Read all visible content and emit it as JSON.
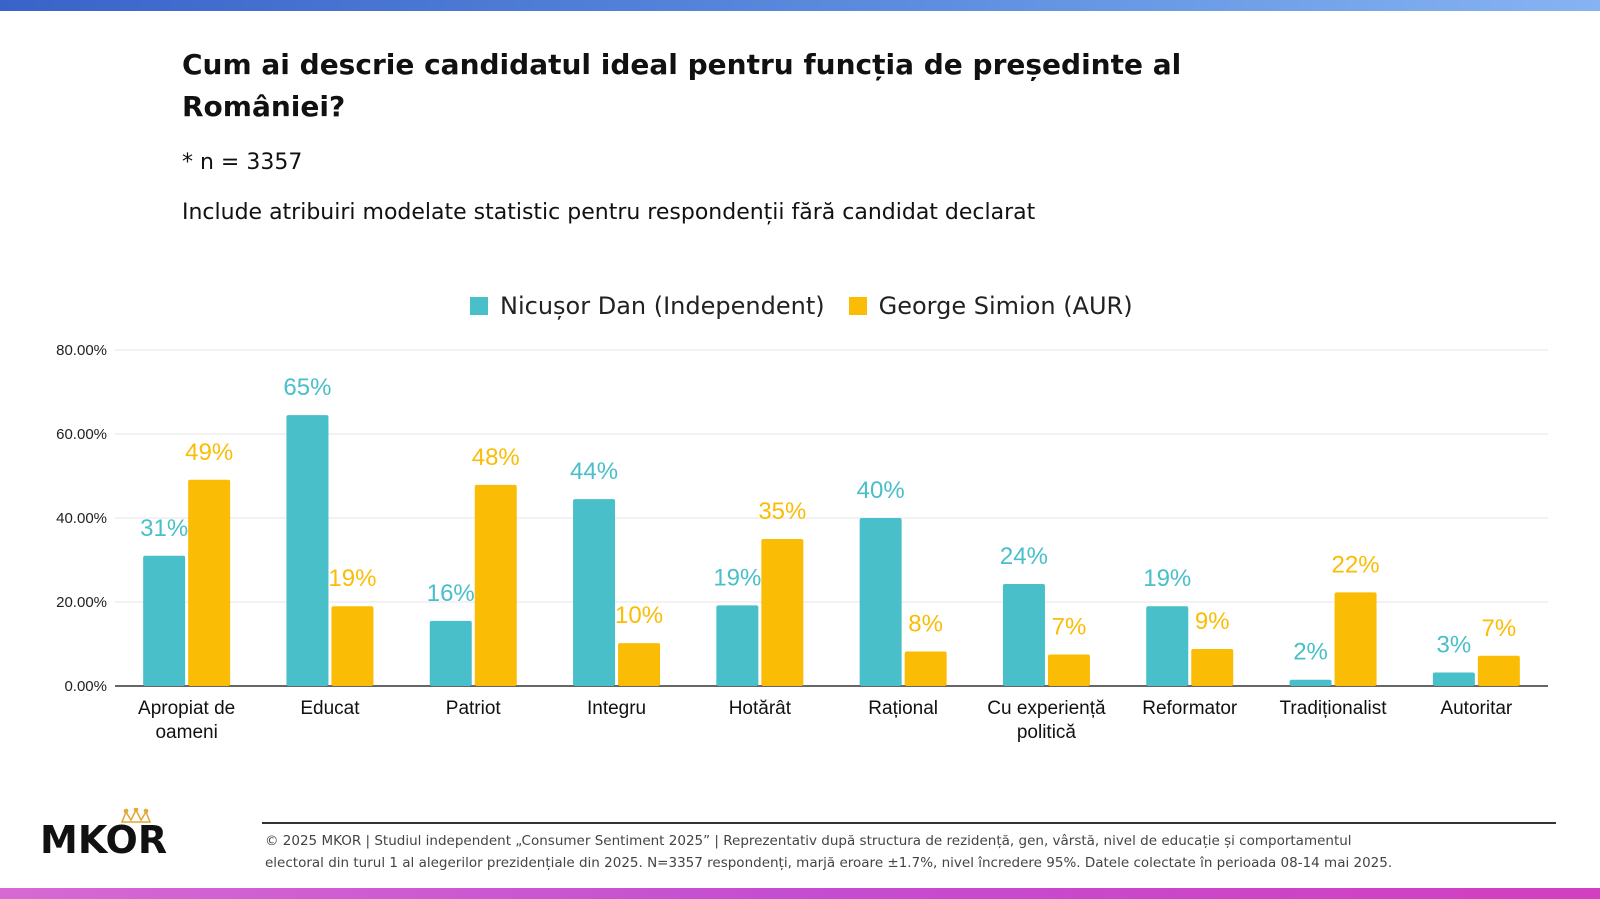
{
  "header": {
    "title": "Cum ai descrie candidatul ideal pentru funcția de președinte al României?",
    "sample_note": "* n = 3357",
    "subtitle": "Include atribuiri modelate statistic pentru respondenții fără candidat declarat"
  },
  "colors": {
    "dan": "#48bfc9",
    "simion": "#fbbc05",
    "top_bar": "#4a78d6",
    "bottom_bar": "#cc4fd0"
  },
  "chart_data": {
    "type": "bar",
    "title": "Cum ai descrie candidatul ideal pentru funcția de președinte al României?",
    "xlabel": "",
    "ylabel": "",
    "ylim": [
      0,
      80
    ],
    "yticks": [
      "0.00%",
      "20.00%",
      "40.00%",
      "60.00%",
      "80.00%"
    ],
    "ytick_values": [
      0,
      20,
      40,
      60,
      80
    ],
    "legend_position": "top-center",
    "categories": [
      [
        "Apropiat de",
        "oameni"
      ],
      [
        "Educat"
      ],
      [
        "Patriot"
      ],
      [
        "Integru"
      ],
      [
        "Hotărât"
      ],
      [
        "Rațional"
      ],
      [
        "Cu experiență",
        "politică"
      ],
      [
        "Reformator"
      ],
      [
        "Tradiționalist"
      ],
      [
        "Autoritar"
      ]
    ],
    "series": [
      {
        "name": "Nicușor Dan (Independent)",
        "color": "#48bfc9",
        "values": [
          31,
          64.5,
          15.5,
          44.5,
          19.2,
          40,
          24.3,
          19,
          1.5,
          3.2
        ],
        "labels": [
          "31%",
          "65%",
          "16%",
          "44%",
          "19%",
          "40%",
          "24%",
          "19%",
          "2%",
          "3%"
        ]
      },
      {
        "name": "George Simion (AUR)",
        "color": "#fbbc05",
        "values": [
          49.1,
          19,
          47.9,
          10.2,
          35,
          8.2,
          7.5,
          8.8,
          22.3,
          7.2
        ],
        "labels": [
          "49%",
          "19%",
          "48%",
          "10%",
          "35%",
          "8%",
          "7%",
          "9%",
          "22%",
          "7%"
        ]
      }
    ]
  },
  "footer": {
    "line1": "© 2025 MKOR | Studiul independent „Consumer Sentiment 2025” | Reprezentativ după structura de rezidență, gen, vârstă, nivel de educație și comportamentul",
    "line2": "electoral din turul 1 al alegerilor prezidențiale din 2025. N=3357 respondenți, marjă eroare ±1.7%, nivel încredere 95%. Datele colectate în perioada 08-14 mai 2025.",
    "logo_text": "MKOR"
  }
}
